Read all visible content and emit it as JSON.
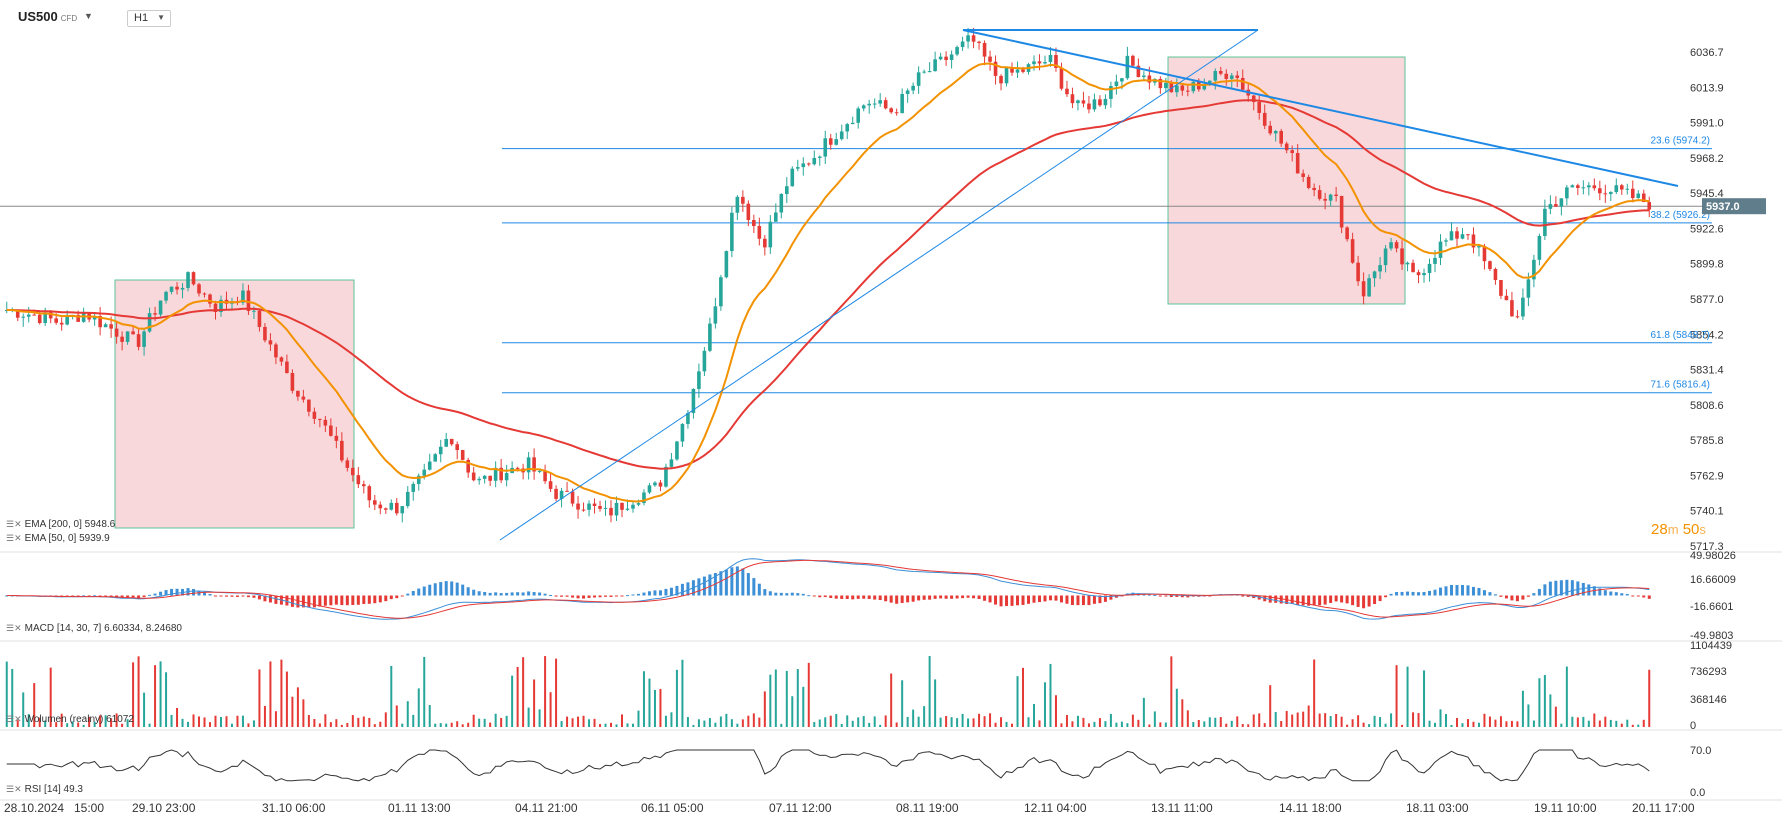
{
  "header": {
    "symbol": "US500",
    "symbol_suffix": "CFD",
    "timeframe": "H1"
  },
  "countdown": {
    "minutes": "28",
    "minutes_unit": "m",
    "seconds": "50",
    "seconds_unit": "s"
  },
  "colors": {
    "bull": "#26a69a",
    "bear": "#e53935",
    "ema200": "#e53935",
    "ema50": "#f39200",
    "trend": "#1e88e5",
    "zone_fill": "#f7d4d7",
    "zone_stroke": "#5cc49a",
    "macd": "#3d8fd6",
    "signal": "#e53935",
    "rsi": "#333333",
    "price_badge": "#607d8b"
  },
  "indicators": {
    "ema200_label": "EMA [200, 0] 5948.6",
    "ema50_label": "EMA [50, 0] 5939.9",
    "macd_label": "MACD [14, 30, 7] 6.60334, 8.24680",
    "volume_label": "Wolumen (realny) 61072",
    "rsi_label": "RSI [14] 49.3"
  },
  "chart_data": {
    "type": "candlestick",
    "instrument": "US500",
    "timeframe": "H1",
    "price_axis": {
      "range": [
        5717.3,
        6050
      ],
      "ticks": [
        6036.7,
        6013.9,
        5991.0,
        5968.2,
        5945.4,
        5922.6,
        5899.8,
        5877.0,
        5854.2,
        5831.4,
        5808.6,
        5785.8,
        5762.9,
        5740.1,
        5717.3
      ]
    },
    "current_price": 5937.0,
    "time_axis": [
      "28.10.2024",
      "15:00",
      "29.10 23:00",
      "31.10 06:00",
      "01.11 13:00",
      "04.11 21:00",
      "06.11 05:00",
      "07.11 12:00",
      "08.11 19:00",
      "12.11 04:00",
      "13.11 11:00",
      "14.11 18:00",
      "18.11 03:00",
      "19.11 10:00",
      "20.11 17:00"
    ],
    "candle_anchors": [
      5870,
      5867,
      5862,
      5868,
      5858,
      5848,
      5880,
      5890,
      5872,
      5880,
      5850,
      5820,
      5800,
      5770,
      5745,
      5742,
      5762,
      5790,
      5758,
      5765,
      5770,
      5752,
      5745,
      5738,
      5748,
      5756,
      5800,
      5860,
      5948,
      5912,
      5955,
      5970,
      5988,
      6005,
      5998,
      6020,
      6032,
      6045,
      6020,
      6025,
      6032,
      6000,
      6006,
      6030,
      6018,
      6010,
      6018,
      6025,
      6000,
      5975,
      5950,
      5940,
      5880,
      5912,
      5890,
      5912,
      5922,
      5890,
      5862,
      5935,
      5948,
      5950,
      5945,
      5939
    ],
    "fibonacci": [
      {
        "label": "23.6 (5974.2)",
        "price": 5974.2
      },
      {
        "label": "38.2 (5926.2)",
        "price": 5926.2
      },
      {
        "label": "61.8 (5848.7)",
        "price": 5848.7
      },
      {
        "label": "71.6 (5816.4)",
        "price": 5816.4
      }
    ],
    "ema200_last": 5948.6,
    "ema50_last": 5939.9,
    "macd": {
      "params": [
        14,
        30,
        7
      ],
      "macd_last": 6.60334,
      "signal_last": 8.2468,
      "ticks": [
        "49.98026",
        "16.66009",
        "-16.6601",
        "-49.9803"
      ]
    },
    "volume": {
      "last": 61072,
      "ticks": [
        "1104439",
        "736293",
        "368146",
        "0"
      ]
    },
    "rsi": {
      "period": 14,
      "last": 49.3,
      "ticks": [
        "70.0",
        "0.0"
      ]
    }
  }
}
